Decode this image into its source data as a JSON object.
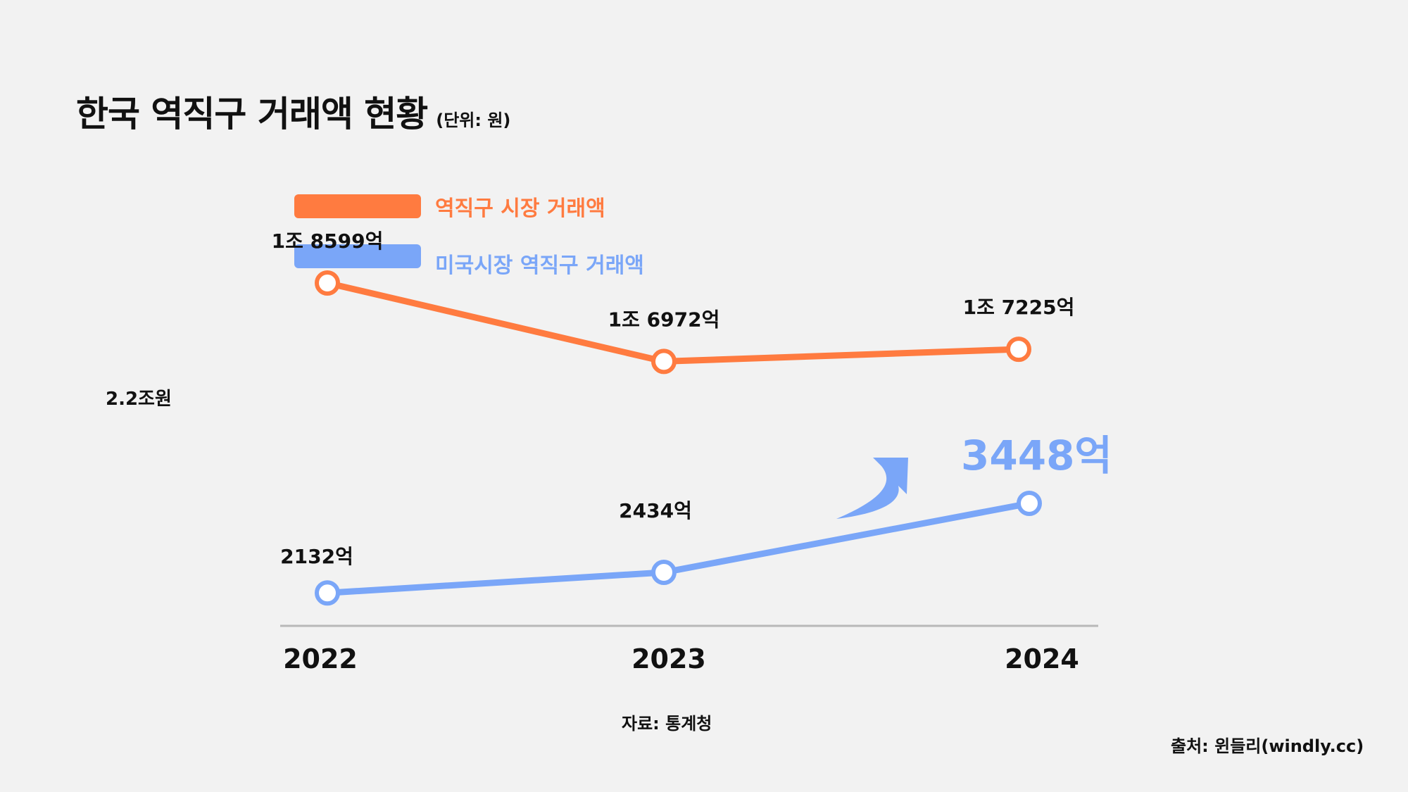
{
  "header": {
    "title": "한국 역직구 거래액 현황",
    "unit": "(단위: 원)"
  },
  "side_label": "2.2조원",
  "source": "자료: 통계청",
  "credit": "출처: 윈들리(windly.cc)",
  "colors": {
    "orange": "#ff7b40",
    "blue": "#7aa6f8",
    "axis": "#b8b8b8",
    "background": "#f2f2f2"
  },
  "chart_data": {
    "type": "line",
    "categories": [
      "2022",
      "2023",
      "2024"
    ],
    "series": [
      {
        "name": "역직구 시장 거래액",
        "values": [
          18599,
          16972,
          17225
        ],
        "labels": [
          "1조 8599억",
          "1조 6972억",
          "1조 7225억"
        ],
        "color": "#ff7b40"
      },
      {
        "name": "미국시장 역직구 거래액",
        "values": [
          2132,
          2434,
          3448
        ],
        "labels": [
          "2132억",
          "2434억",
          "3448억"
        ],
        "color": "#7aa6f8"
      }
    ],
    "highlight": "3448억",
    "ylabel": "",
    "grid": false,
    "legend_position": "top-left"
  }
}
